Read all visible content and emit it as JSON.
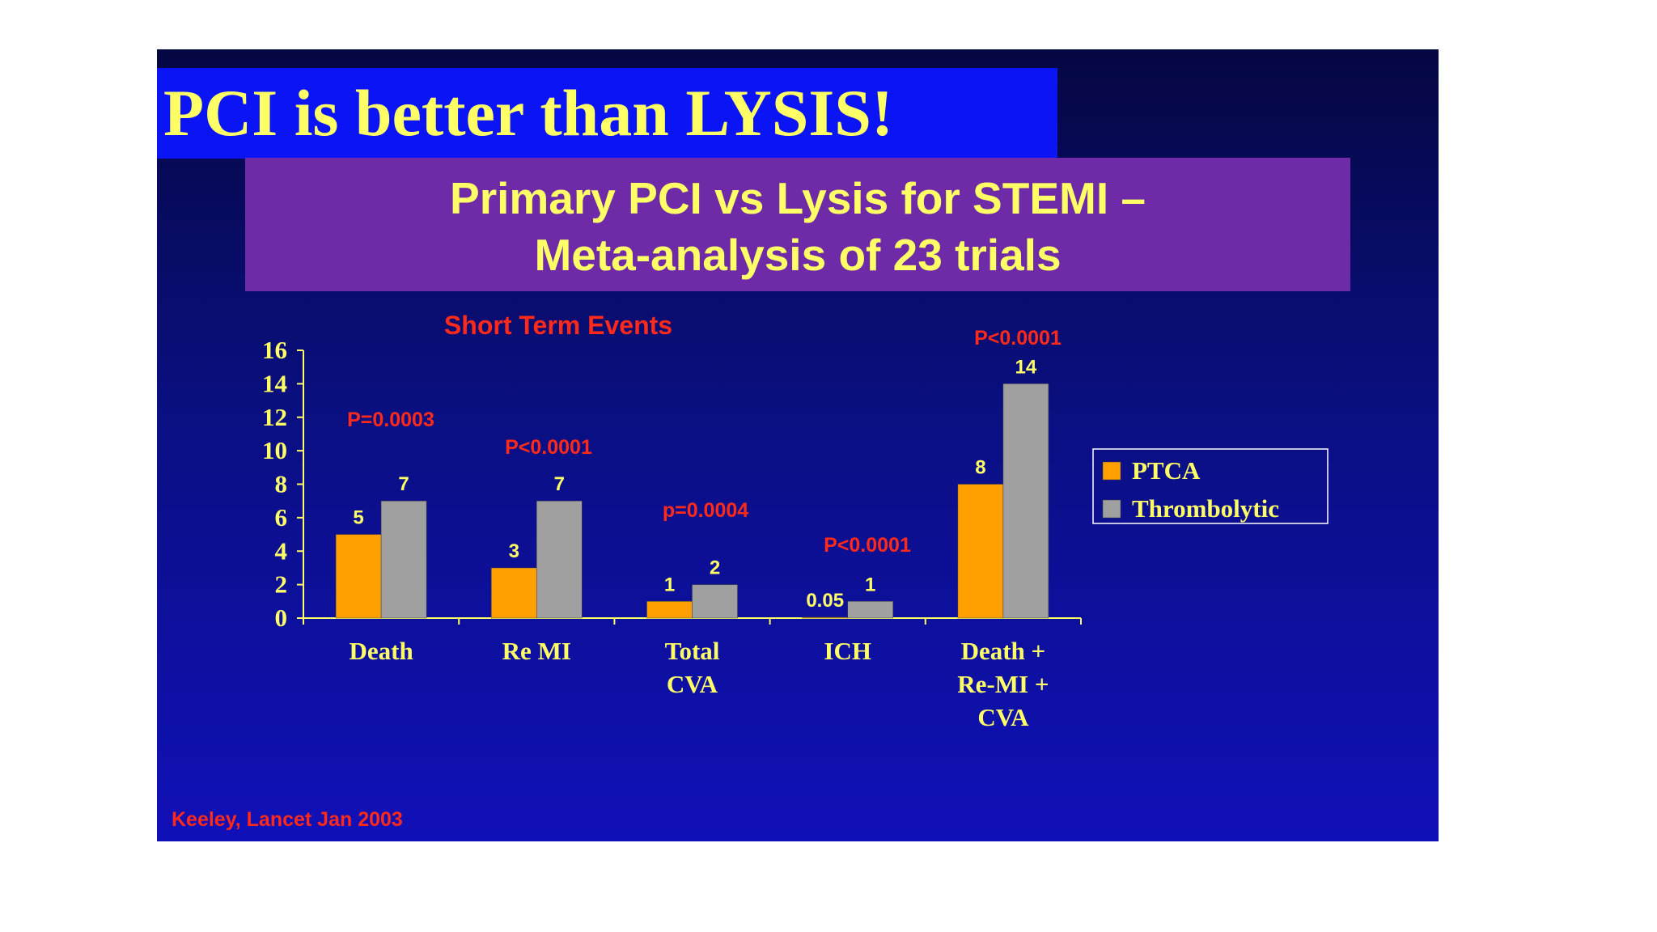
{
  "slide": {
    "headline": "PCI is better than LYSIS!",
    "subtitle_line_1": "Primary PCI vs Lysis for STEMI –",
    "subtitle_line_2": "Meta-analysis of 23 trials",
    "citation": "Keeley, Lancet Jan 2003",
    "colors": {
      "background_top": "#050742",
      "background_bottom": "#1010b8",
      "headline_box": "#0a14f4",
      "subtitle_box": "#6f2aa8",
      "text_yellow": "#ffff66",
      "text_red": "#ff2a1a"
    }
  },
  "chart_data": {
    "type": "bar",
    "title": "Short Term Events",
    "categories": [
      [
        "Death"
      ],
      [
        "Re MI"
      ],
      [
        "Total",
        "CVA"
      ],
      [
        "ICH"
      ],
      [
        "Death +",
        "Re-MI +",
        "CVA"
      ]
    ],
    "series": [
      {
        "name": "PTCA",
        "color": "#ffa000",
        "values": [
          5,
          3,
          1,
          0.05,
          8
        ],
        "labels": [
          "5",
          "3",
          "1",
          "0.05",
          "8"
        ]
      },
      {
        "name": "Thrombolytic",
        "color": "#a0a0a0",
        "values": [
          7,
          7,
          2,
          1,
          14
        ],
        "labels": [
          "7",
          "7",
          "2",
          "1",
          "14"
        ]
      }
    ],
    "p_values": [
      "P=0.0003",
      "P<0.0001",
      "p=0.0004",
      "P<0.0001",
      "P<0.0001"
    ],
    "ylim": [
      0,
      16
    ],
    "yticks": [
      "0",
      "2",
      "4",
      "6",
      "8",
      "10",
      "12",
      "14",
      "16"
    ],
    "xlabel": "",
    "ylabel": "",
    "grid": false,
    "legend": "right"
  }
}
